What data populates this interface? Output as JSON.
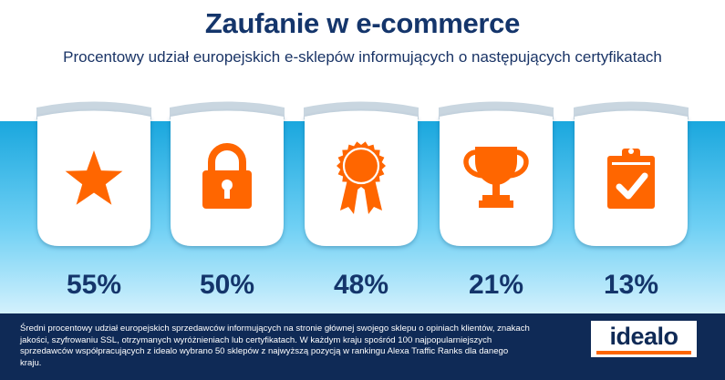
{
  "header": {
    "title": "Zaufanie w e-commerce",
    "subtitle": "Procentowy udział europejskich e-sklepów informujących o następujących certyfikatach"
  },
  "chart_data": {
    "type": "bar",
    "categories": [
      "",
      "",
      "",
      "",
      ""
    ],
    "icons": [
      "star-icon",
      "padlock-icon",
      "rosette-icon",
      "trophy-icon",
      "clipboard-check-icon"
    ],
    "values": [
      55,
      50,
      48,
      21,
      13
    ],
    "value_labels": [
      "55%",
      "50%",
      "48%",
      "21%",
      "13%"
    ],
    "unit": "%",
    "title": "",
    "xlabel": "",
    "ylabel": ""
  },
  "colors": {
    "title": "#14356b",
    "accent": "#ff6600",
    "value_text": "#14356b",
    "band_top": "#1aa7de",
    "band_bottom": "#d3f1fd",
    "footer_bg": "#0f2a56"
  },
  "footer": {
    "note": "Średni procentowy udział europejskich sprzedawców informujących na stronie głównej swojego sklepu o opiniach klientów, znakach jakości, szyfrowaniu SSL, otrzymanych wyróżnieniach lub certyfikatach. W każdym kraju spośród 100 najpopularniejszych sprzedawców współpracujących z idealo wybrano 50 sklepów z najwyższą pozycją w rankingu Alexa Traffic Ranks dla danego kraju.",
    "logo_text": "idealo"
  }
}
